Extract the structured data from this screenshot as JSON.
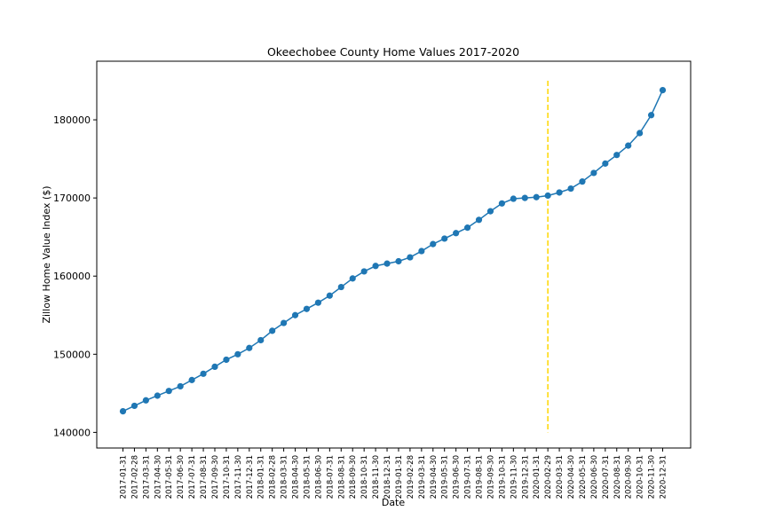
{
  "chart_data": {
    "type": "line",
    "title": "Okeechobee County Home Values 2017-2020",
    "xlabel": "Date",
    "ylabel": "Zillow Home Value Index ($)",
    "ylim": [
      138000,
      187500
    ],
    "yticks": [
      140000,
      150000,
      160000,
      170000,
      180000
    ],
    "grid": false,
    "colors": {
      "series": "#1f77b4",
      "marker_line": "#ffd700"
    },
    "categories": [
      "2017-01-31",
      "2017-02-28",
      "2017-03-31",
      "2017-04-30",
      "2017-05-31",
      "2017-06-30",
      "2017-07-31",
      "2017-08-31",
      "2017-09-30",
      "2017-10-31",
      "2017-11-30",
      "2017-12-31",
      "2018-01-31",
      "2018-02-28",
      "2018-03-31",
      "2018-04-30",
      "2018-05-31",
      "2018-06-30",
      "2018-07-31",
      "2018-08-31",
      "2018-09-30",
      "2018-10-31",
      "2018-11-30",
      "2018-12-31",
      "2019-01-31",
      "2019-02-28",
      "2019-03-31",
      "2019-04-30",
      "2019-05-31",
      "2019-06-30",
      "2019-07-31",
      "2019-08-31",
      "2019-09-30",
      "2019-10-31",
      "2019-11-30",
      "2019-12-31",
      "2020-01-31",
      "2020-02-29",
      "2020-03-31",
      "2020-04-30",
      "2020-05-31",
      "2020-06-30",
      "2020-07-31",
      "2020-08-31",
      "2020-09-30",
      "2020-10-31",
      "2020-11-30",
      "2020-12-31"
    ],
    "series": [
      {
        "values": [
          142700,
          143400,
          144100,
          144700,
          145300,
          145900,
          146700,
          147500,
          148400,
          149300,
          150000,
          150800,
          151800,
          153000,
          154000,
          155000,
          155800,
          156600,
          157500,
          158600,
          159700,
          160600,
          161300,
          161600,
          161900,
          162400,
          163200,
          164100,
          164800,
          165500,
          166200,
          167200,
          168300,
          169300,
          169900,
          170000,
          170100,
          170300,
          170700,
          171200,
          172100,
          173200,
          174400,
          175500,
          176700,
          178300,
          180600,
          183800
        ]
      }
    ],
    "vertical_line": {
      "category": "2020-02-29",
      "y_from": 140000,
      "y_to": 185000,
      "style": "dashed"
    }
  }
}
